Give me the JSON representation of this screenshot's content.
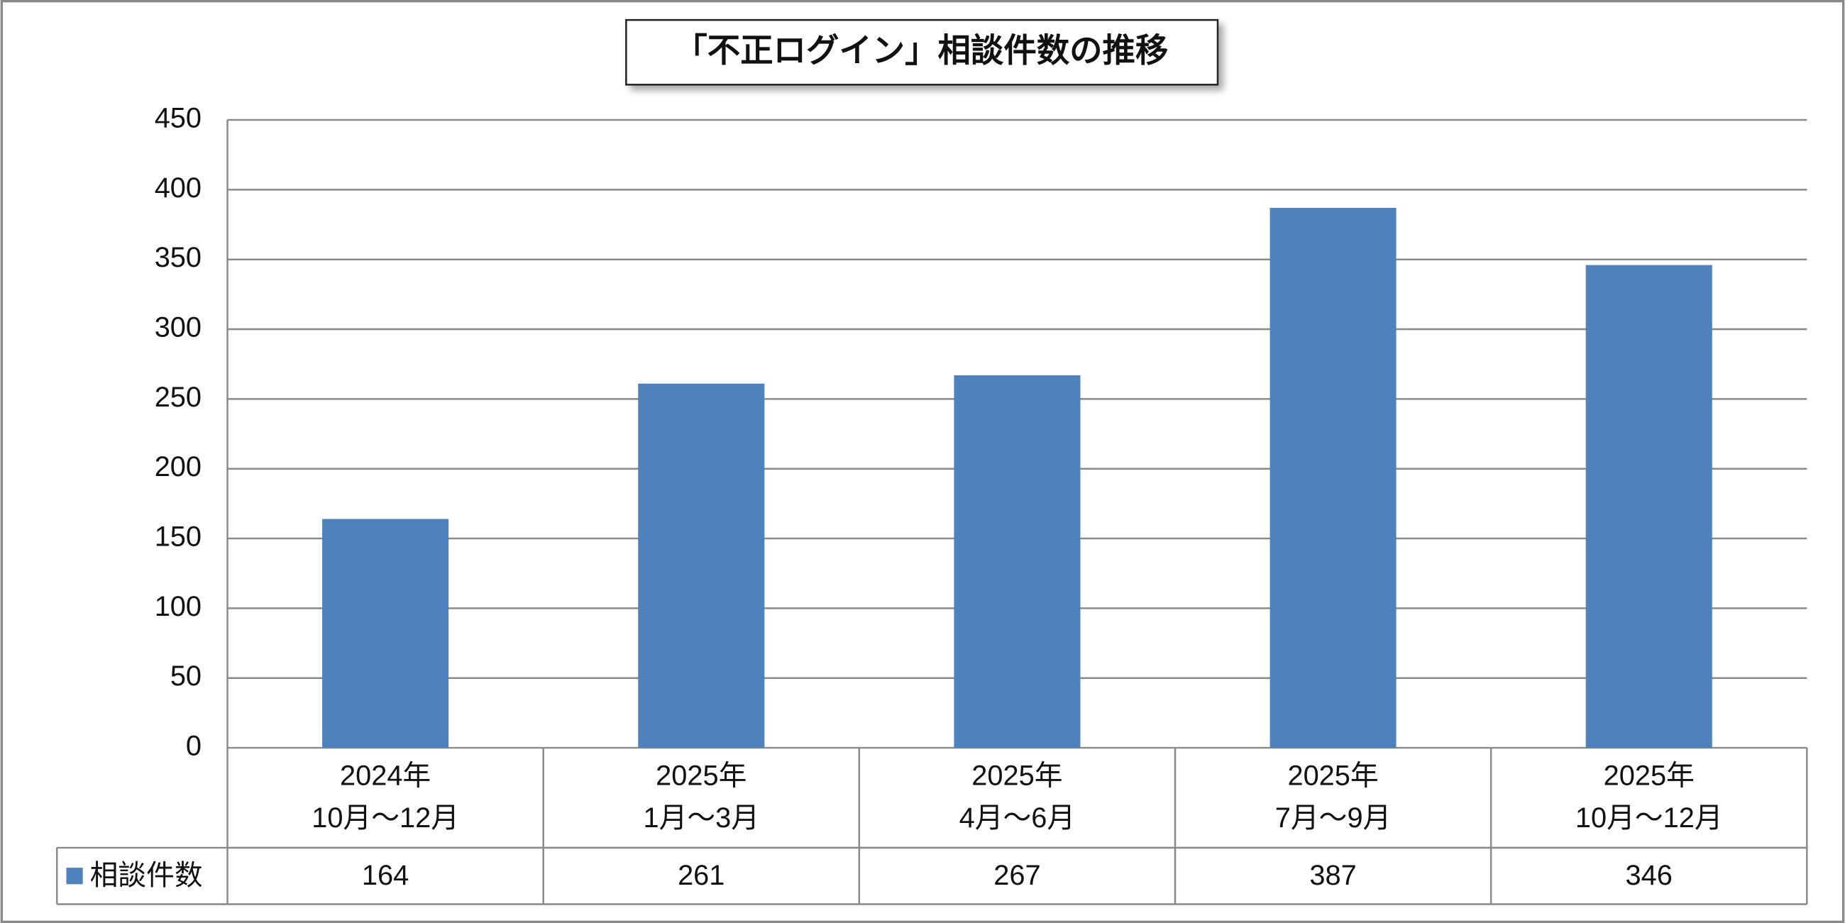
{
  "chart_data": {
    "type": "bar",
    "title": "「不正ログイン」相談件数の推移",
    "categories": [
      "2024年\n10月～12月",
      "2025年\n1月～3月",
      "2025年\n4月～6月",
      "2025年\n7月～9月",
      "2025年\n10月～12月"
    ],
    "series": [
      {
        "name": "相談件数",
        "color": "#4f81bd",
        "values": [
          164,
          261,
          267,
          387,
          346
        ]
      }
    ],
    "ylim": [
      0,
      450
    ],
    "yticks": [
      0,
      50,
      100,
      150,
      200,
      250,
      300,
      350,
      400,
      450
    ],
    "grid": true
  }
}
